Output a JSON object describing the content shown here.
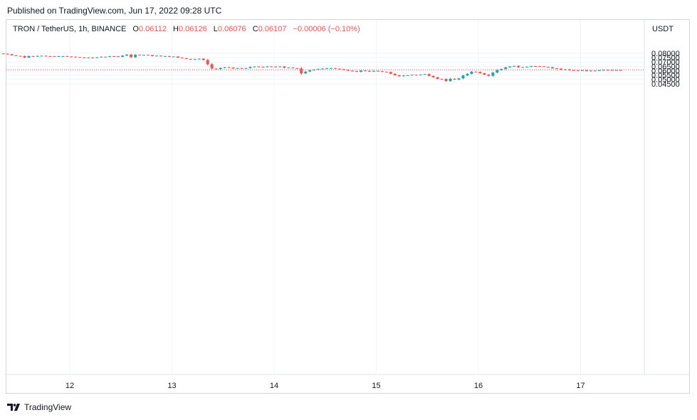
{
  "published": "Published on TradingView.com, Jun 17, 2022 09:28 UTC",
  "legend": {
    "symbol": "TRON / TetherUS, 1h, BINANCE",
    "open_label": "O",
    "open": "0.06112",
    "high_label": "H",
    "high": "0.06126",
    "low_label": "L",
    "low": "0.06076",
    "close_label": "C",
    "close": "0.06107",
    "change": "−0.00006 (−0.10%)"
  },
  "unit": "USDT",
  "footer": {
    "brand": "TradingView"
  },
  "colors": {
    "up": "#26a69a",
    "down": "#ef5350",
    "grid": "#f0f3fa",
    "last_price_line": "#ef5350"
  },
  "chart_data": {
    "type": "candlestick",
    "interval": "1h",
    "x_ticks": [
      "12",
      "13",
      "14",
      "15",
      "16",
      "17"
    ],
    "y_ticks": [
      "0.08000",
      "0.07500",
      "0.07000",
      "0.06500",
      "0.06000",
      "0.05500",
      "0.05000",
      "0.04500"
    ],
    "ylim": [
      0.0435,
      0.0817
    ],
    "grid": true,
    "y_axis_position": "right",
    "last_price": 0.06107,
    "start_day": 11.35,
    "close": [
      0.0795,
      0.0789,
      0.0777,
      0.077,
      0.0768,
      0.0751,
      0.0768,
      0.0763,
      0.077,
      0.0772,
      0.0768,
      0.0767,
      0.0762,
      0.0767,
      0.0768,
      0.0764,
      0.076,
      0.0756,
      0.0753,
      0.0749,
      0.0751,
      0.0748,
      0.0754,
      0.0761,
      0.0759,
      0.0767,
      0.0766,
      0.0759,
      0.0773,
      0.0785,
      0.0755,
      0.0783,
      0.0781,
      0.0782,
      0.0779,
      0.0768,
      0.0773,
      0.0768,
      0.0768,
      0.076,
      0.0763,
      0.075,
      0.0744,
      0.0735,
      0.0727,
      0.0734,
      0.0738,
      0.0723,
      0.0674,
      0.0625,
      0.0617,
      0.0632,
      0.064,
      0.0636,
      0.0625,
      0.063,
      0.0626,
      0.063,
      0.0643,
      0.0648,
      0.0645,
      0.0641,
      0.0649,
      0.0647,
      0.0643,
      0.0649,
      0.0633,
      0.0636,
      0.063,
      0.0626,
      0.0569,
      0.059,
      0.0606,
      0.0614,
      0.0621,
      0.0625,
      0.063,
      0.063,
      0.0623,
      0.0618,
      0.061,
      0.06,
      0.0595,
      0.0587,
      0.0602,
      0.0598,
      0.0589,
      0.0598,
      0.0594,
      0.0588,
      0.0585,
      0.0565,
      0.0548,
      0.0536,
      0.0545,
      0.0548,
      0.0553,
      0.055,
      0.0556,
      0.0561,
      0.054,
      0.0524,
      0.0506,
      0.0505,
      0.0481,
      0.0508,
      0.0498,
      0.0512,
      0.0545,
      0.0564,
      0.0589,
      0.0586,
      0.0571,
      0.0555,
      0.0541,
      0.0578,
      0.0607,
      0.062,
      0.0638,
      0.0648,
      0.0655,
      0.0639,
      0.0641,
      0.0645,
      0.0653,
      0.0652,
      0.065,
      0.0644,
      0.064,
      0.0628,
      0.0624,
      0.0611,
      0.0616,
      0.0606,
      0.0603,
      0.0599,
      0.0604,
      0.0595,
      0.0601,
      0.0598,
      0.0604,
      0.061,
      0.0608,
      0.0605,
      0.0608,
      0.0604,
      0.06,
      0.0591,
      0.0588,
      0.0602,
      0.0628,
      0.0618,
      0.0611,
      0.0611,
      0.0613,
      0.0611,
      0.0612,
      0.0611,
      0.0611
    ]
  }
}
